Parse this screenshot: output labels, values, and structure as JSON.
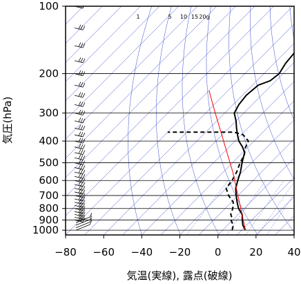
{
  "chart_data": {
    "type": "line",
    "title": "",
    "xlabel": "気温(実線), 露点(破線)",
    "ylabel": "気圧(hPa)",
    "xlim": [
      -80,
      40
    ],
    "ylim": [
      1050,
      100
    ],
    "y_scale": "log",
    "grid": true,
    "x_ticks": [
      -80,
      -60,
      -40,
      -20,
      0,
      20,
      40
    ],
    "x_tick_labels": [
      "−80",
      "−60",
      "−40",
      "−20",
      "0",
      "20",
      "40"
    ],
    "y_ticks": [
      100,
      200,
      300,
      400,
      500,
      600,
      700,
      800,
      900,
      1000
    ],
    "y_tick_labels": [
      "100",
      "200",
      "300",
      "400",
      "500",
      "600",
      "700",
      "800",
      "900",
      "1000"
    ],
    "isobars": [
      100,
      200,
      300,
      400,
      500,
      600,
      700,
      800,
      900,
      1000
    ],
    "isotherm_temps": [
      -80,
      -60,
      -40,
      -20,
      0,
      20,
      40
    ],
    "mixing_ratio_labels": [
      "1",
      "5",
      "10",
      "15",
      "20g"
    ],
    "mixing_ratio_values": [
      1,
      5,
      10,
      15,
      20
    ],
    "series": [
      {
        "style": "solid",
        "color": "#000000",
        "points": [
          [
            12,
            1000
          ],
          [
            8,
            950
          ],
          [
            5,
            900
          ],
          [
            2,
            850
          ],
          [
            -3,
            800
          ],
          [
            -7,
            750
          ],
          [
            -11,
            700
          ],
          [
            -15,
            650
          ],
          [
            -18,
            600
          ],
          [
            -21,
            550
          ],
          [
            -25,
            500
          ],
          [
            -29,
            450
          ],
          [
            -33,
            425
          ],
          [
            -38,
            400
          ],
          [
            -42,
            375
          ],
          [
            -46,
            350
          ],
          [
            -50,
            325
          ],
          [
            -55,
            300
          ],
          [
            -57,
            275
          ],
          [
            -58,
            250
          ],
          [
            -57,
            225
          ],
          [
            -53,
            215
          ],
          [
            -52,
            200
          ],
          [
            -54,
            180
          ],
          [
            -55,
            160
          ],
          [
            -56,
            140
          ],
          [
            -57,
            120
          ],
          [
            -58,
            100
          ]
        ]
      },
      {
        "style": "dashed",
        "color": "#000000",
        "points": [
          [
            5,
            1000
          ],
          [
            3,
            950
          ],
          [
            1,
            925
          ],
          [
            -1,
            900
          ],
          [
            -2,
            875
          ],
          [
            -4,
            850
          ],
          [
            -6,
            800
          ],
          [
            -9,
            750
          ],
          [
            -15,
            700
          ],
          [
            -20,
            650
          ],
          [
            -21,
            600
          ],
          [
            -23,
            550
          ],
          [
            -26,
            500
          ],
          [
            -28,
            460
          ],
          [
            -31,
            430
          ],
          [
            -33,
            400
          ],
          [
            -39,
            375
          ],
          [
            -45,
            365
          ],
          [
            -80,
            365
          ]
        ]
      },
      {
        "style": "solid",
        "color": "#ff0000",
        "points": [
          [
            12,
            1000
          ],
          [
            -25,
            550
          ],
          [
            -65,
            300
          ],
          [
            -80,
            238
          ]
        ]
      }
    ],
    "wind_barb_pressures": [
      1000,
      975,
      950,
      925,
      900,
      875,
      850,
      825,
      800,
      775,
      750,
      725,
      700,
      675,
      650,
      625,
      600,
      575,
      550,
      525,
      500,
      475,
      450,
      425,
      400,
      375,
      350,
      325,
      300,
      275,
      250,
      225,
      200,
      175,
      150,
      125,
      100
    ]
  }
}
